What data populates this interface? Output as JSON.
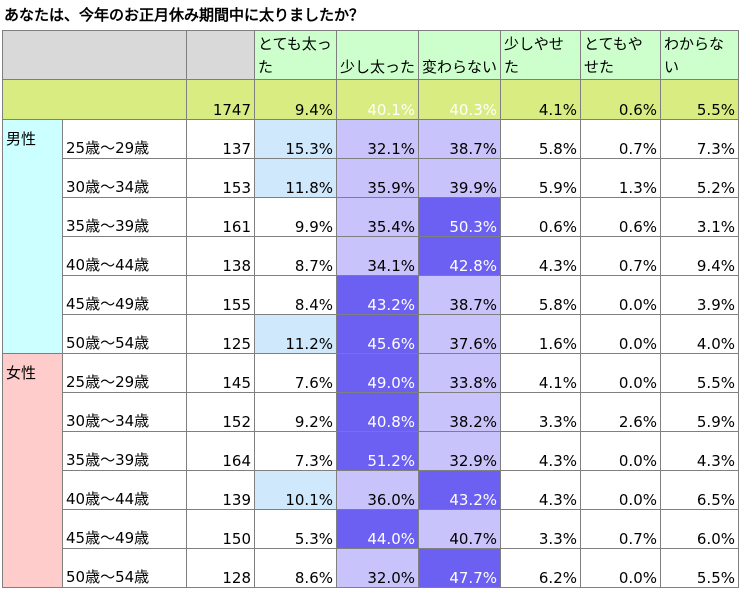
{
  "title": "あなたは、今年のお正月休み期間中に太りましたか？",
  "chart_data": {
    "type": "table",
    "title": "あなたは、今年のお正月休み期間中に太りましたか？",
    "columns": [
      "とても太った",
      "少し太った",
      "変わらない",
      "少しやせた",
      "とてもやせた",
      "わからない"
    ],
    "total": {
      "n": "1747",
      "values": [
        "9.4%",
        "40.1%",
        "40.3%",
        "4.1%",
        "0.6%",
        "5.5%"
      ],
      "shade": [
        0,
        3,
        3,
        0,
        0,
        0
      ]
    },
    "groups": [
      {
        "gender": "男性",
        "genderColor": "#ccffff",
        "rows": [
          {
            "age": "25歳～29歳",
            "n": "137",
            "values": [
              "15.3%",
              "32.1%",
              "38.7%",
              "5.8%",
              "0.7%",
              "7.3%"
            ],
            "shade": [
              1,
              2,
              2,
              0,
              0,
              0
            ]
          },
          {
            "age": "30歳～34歳",
            "n": "153",
            "values": [
              "11.8%",
              "35.9%",
              "39.9%",
              "5.9%",
              "1.3%",
              "5.2%"
            ],
            "shade": [
              1,
              2,
              2,
              0,
              0,
              0
            ]
          },
          {
            "age": "35歳～39歳",
            "n": "161",
            "values": [
              "9.9%",
              "35.4%",
              "50.3%",
              "0.6%",
              "0.6%",
              "3.1%"
            ],
            "shade": [
              0,
              2,
              3,
              0,
              0,
              0
            ]
          },
          {
            "age": "40歳～44歳",
            "n": "138",
            "values": [
              "8.7%",
              "34.1%",
              "42.8%",
              "4.3%",
              "0.7%",
              "9.4%"
            ],
            "shade": [
              0,
              2,
              3,
              0,
              0,
              0
            ]
          },
          {
            "age": "45歳～49歳",
            "n": "155",
            "values": [
              "8.4%",
              "43.2%",
              "38.7%",
              "5.8%",
              "0.0%",
              "3.9%"
            ],
            "shade": [
              0,
              3,
              2,
              0,
              0,
              0
            ]
          },
          {
            "age": "50歳～54歳",
            "n": "125",
            "values": [
              "11.2%",
              "45.6%",
              "37.6%",
              "1.6%",
              "0.0%",
              "4.0%"
            ],
            "shade": [
              1,
              3,
              2,
              0,
              0,
              0
            ]
          }
        ]
      },
      {
        "gender": "女性",
        "genderColor": "#ffcccc",
        "rows": [
          {
            "age": "25歳～29歳",
            "n": "145",
            "values": [
              "7.6%",
              "49.0%",
              "33.8%",
              "4.1%",
              "0.0%",
              "5.5%"
            ],
            "shade": [
              0,
              3,
              2,
              0,
              0,
              0
            ]
          },
          {
            "age": "30歳～34歳",
            "n": "152",
            "values": [
              "9.2%",
              "40.8%",
              "38.2%",
              "3.3%",
              "2.6%",
              "5.9%"
            ],
            "shade": [
              0,
              3,
              2,
              0,
              0,
              0
            ]
          },
          {
            "age": "35歳～39歳",
            "n": "164",
            "values": [
              "7.3%",
              "51.2%",
              "32.9%",
              "4.3%",
              "0.0%",
              "4.3%"
            ],
            "shade": [
              0,
              3,
              2,
              0,
              0,
              0
            ]
          },
          {
            "age": "40歳～44歳",
            "n": "139",
            "values": [
              "10.1%",
              "36.0%",
              "43.2%",
              "4.3%",
              "0.0%",
              "6.5%"
            ],
            "shade": [
              1,
              2,
              3,
              0,
              0,
              0
            ]
          },
          {
            "age": "45歳～49歳",
            "n": "150",
            "values": [
              "5.3%",
              "44.0%",
              "40.7%",
              "3.3%",
              "0.7%",
              "6.0%"
            ],
            "shade": [
              0,
              3,
              2,
              0,
              0,
              0
            ]
          },
          {
            "age": "50歳～54歳",
            "n": "128",
            "values": [
              "8.6%",
              "32.0%",
              "47.7%",
              "6.2%",
              "0.0%",
              "5.5%"
            ],
            "shade": [
              0,
              2,
              3,
              0,
              0,
              0
            ]
          }
        ]
      }
    ]
  }
}
